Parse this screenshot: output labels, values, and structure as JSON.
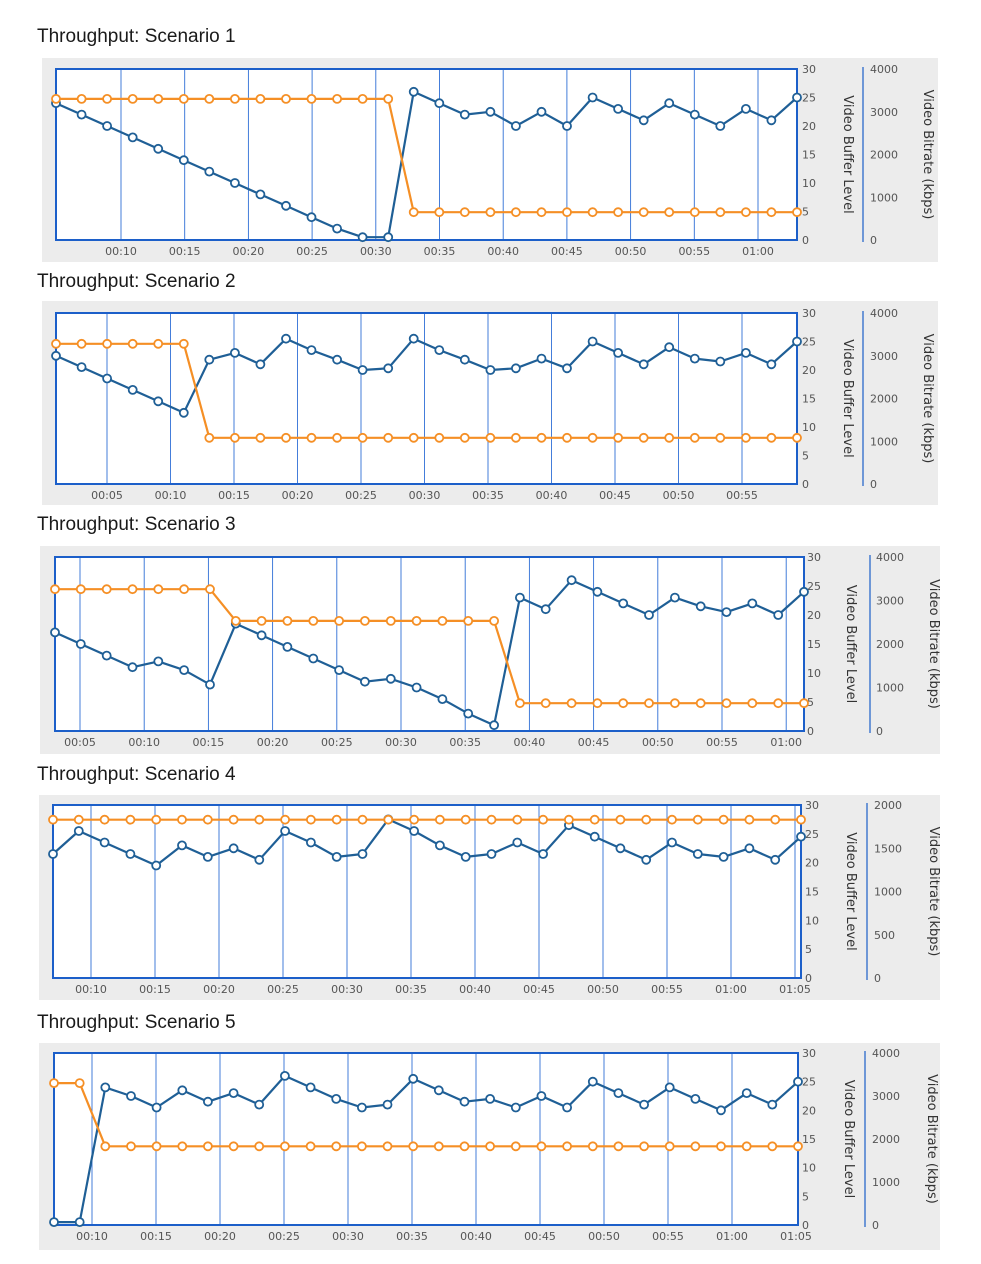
{
  "colors": {
    "buffer_series": "#1f5f96",
    "bitrate_series": "#f58f25",
    "plot_border": "#1c5fc9",
    "gridline": "#2f6fd6",
    "panel_bg": "#ececec"
  },
  "chart_data": [
    {
      "type": "line",
      "title": "Throughput: Scenario 1",
      "y1label": "Video Buffer Level",
      "y2label": "Video Bitrate (kbps)",
      "y1ticks": [
        "0",
        "5",
        "10",
        "15",
        "20",
        "25",
        "30"
      ],
      "y2ticks": [
        "0",
        "1000",
        "2000",
        "3000",
        "4000"
      ],
      "xticks": [
        "00:10",
        "00:15",
        "00:20",
        "00:25",
        "00:30",
        "00:35",
        "00:40",
        "00:45",
        "00:50",
        "00:55",
        "01:00"
      ],
      "y1lim": [
        0,
        30
      ],
      "y2lim": [
        0,
        4000
      ],
      "grid": "vertical",
      "series": [
        {
          "values": [
            24,
            22,
            20,
            18,
            16,
            14,
            12,
            10,
            8,
            6,
            4,
            2,
            0.5,
            0.5,
            26,
            24,
            22,
            22.5,
            20,
            22.5,
            20,
            25,
            23,
            21,
            24,
            22,
            20,
            23,
            21,
            25
          ]
        },
        {
          "values": [
            3300,
            3300,
            3300,
            3300,
            3300,
            3300,
            3300,
            3300,
            3300,
            3300,
            3300,
            3300,
            3300,
            3300,
            650,
            650,
            650,
            650,
            650,
            650,
            650,
            650,
            650,
            650,
            650,
            650,
            650,
            650,
            650,
            650
          ]
        }
      ]
    },
    {
      "type": "line",
      "title": "Throughput: Scenario 2",
      "y1label": "Video Buffer Level",
      "y2label": "Video Bitrate (kbps)",
      "y1ticks": [
        "0",
        "5",
        "10",
        "15",
        "20",
        "25",
        "30"
      ],
      "y2ticks": [
        "0",
        "1000",
        "2000",
        "3000",
        "4000"
      ],
      "xticks": [
        "00:05",
        "00:10",
        "00:15",
        "00:20",
        "00:25",
        "00:30",
        "00:35",
        "00:40",
        "00:45",
        "00:50",
        "00:55"
      ],
      "y1lim": [
        0,
        30
      ],
      "y2lim": [
        0,
        4000
      ],
      "grid": "vertical",
      "series": [
        {
          "values": [
            22.5,
            20.5,
            18.5,
            16.5,
            14.5,
            12.5,
            21.8,
            23,
            21,
            25.5,
            23.5,
            21.8,
            20,
            20.3,
            25.5,
            23.5,
            21.8,
            20,
            20.3,
            22,
            20.3,
            25,
            23,
            21,
            24,
            22,
            21.5,
            23,
            21,
            25
          ]
        },
        {
          "values": [
            3280,
            3280,
            3280,
            3280,
            3280,
            3280,
            1080,
            1080,
            1080,
            1080,
            1080,
            1080,
            1080,
            1080,
            1080,
            1080,
            1080,
            1080,
            1080,
            1080,
            1080,
            1080,
            1080,
            1080,
            1080,
            1080,
            1080,
            1080,
            1080,
            1080
          ]
        }
      ]
    },
    {
      "type": "line",
      "title": "Throughput: Scenario 3",
      "y1label": "Video Buffer Level",
      "y2label": "Video Bitrate (kbps)",
      "y1ticks": [
        "0",
        "5",
        "10",
        "15",
        "20",
        "25",
        "30"
      ],
      "y2ticks": [
        "0",
        "1000",
        "2000",
        "3000",
        "4000"
      ],
      "xticks": [
        "00:05",
        "00:10",
        "00:15",
        "00:20",
        "00:25",
        "00:30",
        "00:35",
        "00:40",
        "00:45",
        "00:50",
        "00:55",
        "01:00"
      ],
      "y1lim": [
        0,
        30
      ],
      "y2lim": [
        0,
        4000
      ],
      "grid": "vertical",
      "series": [
        {
          "values": [
            17,
            15,
            13,
            11,
            12,
            10.5,
            8,
            18.5,
            16.5,
            14.5,
            12.5,
            10.5,
            8.5,
            9,
            7.5,
            5.5,
            3,
            1,
            23,
            21,
            26,
            24,
            22,
            20,
            23,
            21.5,
            20.5,
            22,
            20,
            24
          ]
        },
        {
          "values": [
            3260,
            3260,
            3260,
            3260,
            3260,
            3260,
            3260,
            2530,
            2530,
            2530,
            2530,
            2530,
            2530,
            2530,
            2530,
            2530,
            2530,
            2530,
            640,
            640,
            640,
            640,
            640,
            640,
            640,
            640,
            640,
            640,
            640,
            640
          ]
        }
      ]
    },
    {
      "type": "line",
      "title": "Throughput: Scenario 4",
      "y1label": "Video Buffer Level",
      "y2label": "Video Bitrate (kbps)",
      "y1ticks": [
        "0",
        "5",
        "10",
        "15",
        "20",
        "25",
        "30"
      ],
      "y2ticks": [
        "0",
        "500",
        "1000",
        "1500",
        "2000"
      ],
      "xticks": [
        "00:10",
        "00:15",
        "00:20",
        "00:25",
        "00:30",
        "00:35",
        "00:40",
        "00:45",
        "00:50",
        "00:55",
        "01:00",
        "01:05"
      ],
      "y1lim": [
        0,
        30
      ],
      "y2lim": [
        0,
        2000
      ],
      "grid": "vertical",
      "series": [
        {
          "values": [
            21.5,
            25.5,
            23.5,
            21.5,
            19.5,
            23,
            21,
            22.5,
            20.5,
            25.5,
            23.5,
            21,
            21.5,
            27.5,
            25.5,
            23,
            21,
            21.5,
            23.5,
            21.5,
            26.5,
            24.5,
            22.5,
            20.5,
            23.5,
            21.5,
            21,
            22.5,
            20.5,
            24.5
          ]
        },
        {
          "values": [
            1830,
            1830,
            1830,
            1830,
            1830,
            1830,
            1830,
            1830,
            1830,
            1830,
            1830,
            1830,
            1830,
            1830,
            1830,
            1830,
            1830,
            1830,
            1830,
            1830,
            1830,
            1830,
            1830,
            1830,
            1830,
            1830,
            1830,
            1830,
            1830,
            1830
          ]
        }
      ]
    },
    {
      "type": "line",
      "title": "Throughput: Scenario 5",
      "y1label": "Video Buffer Level",
      "y2label": "Video Bitrate (kbps)",
      "y1ticks": [
        "0",
        "5",
        "10",
        "15",
        "20",
        "25",
        "30"
      ],
      "y2ticks": [
        "0",
        "1000",
        "2000",
        "3000",
        "4000"
      ],
      "xticks": [
        "00:10",
        "00:15",
        "00:20",
        "00:25",
        "00:30",
        "00:35",
        "00:40",
        "00:45",
        "00:50",
        "00:55",
        "01:00",
        "01:05"
      ],
      "y1lim": [
        0,
        30
      ],
      "y2lim": [
        0,
        4000
      ],
      "grid": "vertical",
      "series": [
        {
          "values": [
            0.5,
            0.5,
            24,
            22.5,
            20.5,
            23.5,
            21.5,
            23,
            21,
            26,
            24,
            22,
            20.5,
            21,
            25.5,
            23.5,
            21.5,
            22,
            20.5,
            22.5,
            20.5,
            25,
            23,
            21,
            24,
            22,
            20,
            23,
            21,
            25
          ]
        },
        {
          "values": [
            3300,
            3300,
            1830,
            1830,
            1830,
            1830,
            1830,
            1830,
            1830,
            1830,
            1830,
            1830,
            1830,
            1830,
            1830,
            1830,
            1830,
            1830,
            1830,
            1830,
            1830,
            1830,
            1830,
            1830,
            1830,
            1830,
            1830,
            1830,
            1830,
            1830
          ]
        }
      ]
    }
  ]
}
